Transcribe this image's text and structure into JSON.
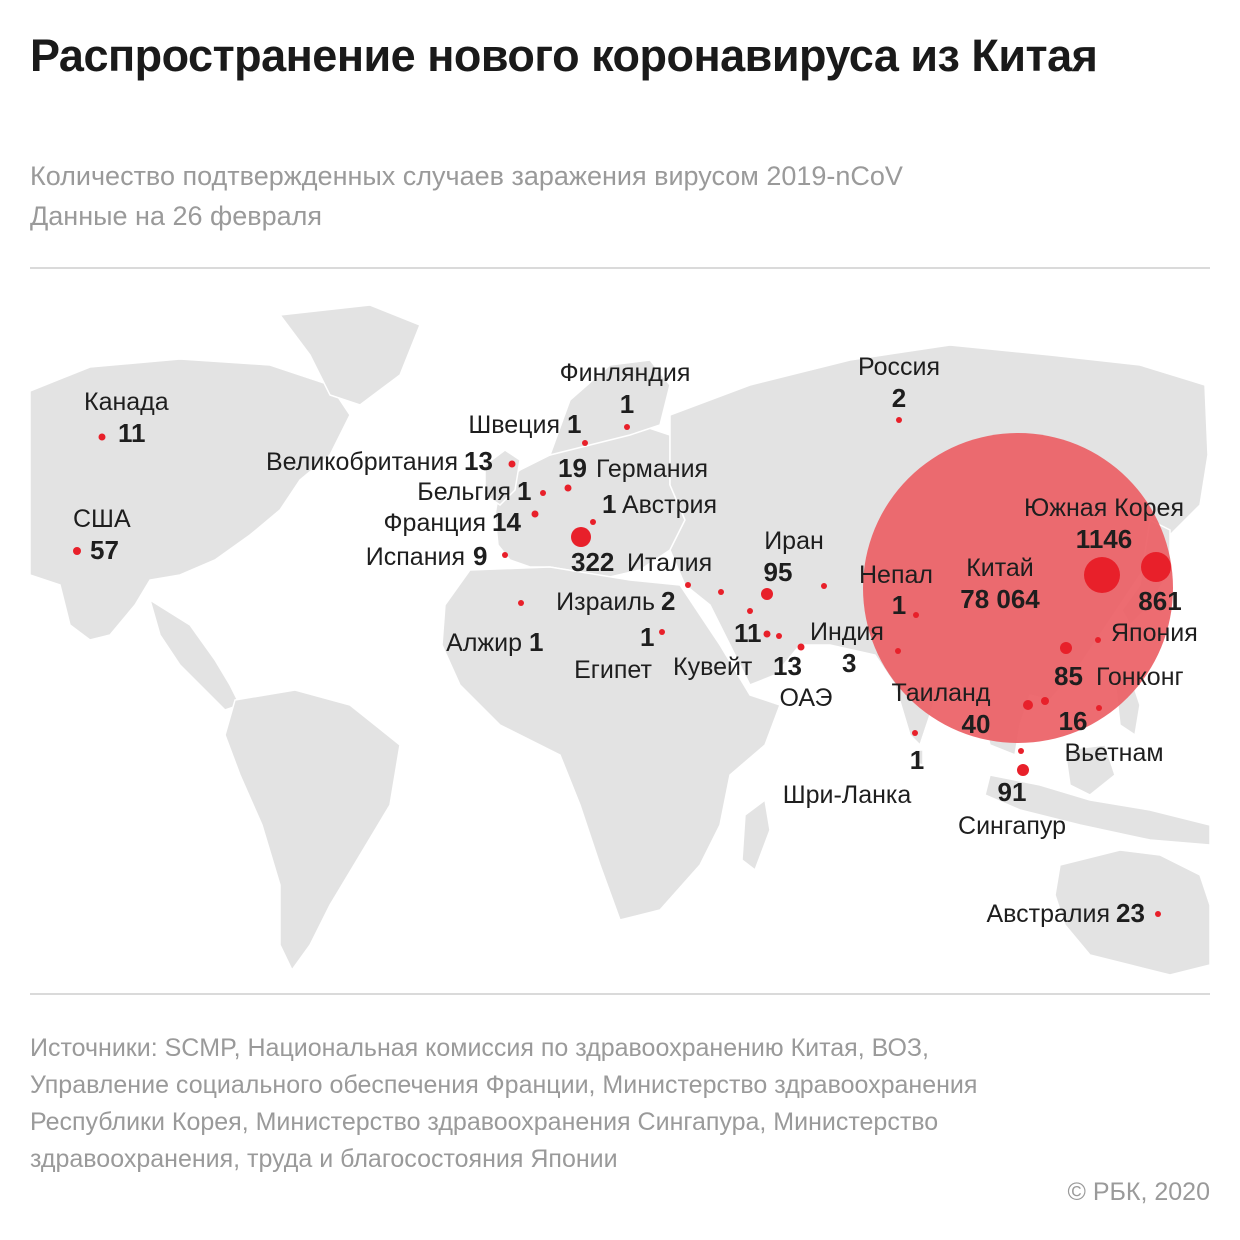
{
  "title": "Распространение нового коронавируса из Китая",
  "subtitle_lines": [
    "Количество подтвержденных случаев заражения вирусом 2019-nCoV",
    "Данные на 26 февраля"
  ],
  "sources": "Источники: SCMP, Национальная комиссия по здравоохранению Китая, ВОЗ, Управление социального обеспечения Франции, Министерство здравоохранения Республики Корея, Министерство здравоохранения Сингапура, Министерство здравоохранения, труда и благосостояния Японии",
  "copyright": "© РБК, 2020",
  "colors": {
    "marker": "#e8202a",
    "china_circle": "#eb5c62",
    "land": "#e3e3e3"
  },
  "locations": [
    {
      "name": "Канада",
      "cases": 11
    },
    {
      "name": "США",
      "cases": 57
    },
    {
      "name": "Великобритания",
      "cases": 13
    },
    {
      "name": "Бельгия",
      "cases": 1
    },
    {
      "name": "Франция",
      "cases": 14
    },
    {
      "name": "Испания",
      "cases": 9
    },
    {
      "name": "Швеция",
      "cases": 1
    },
    {
      "name": "Финляндия",
      "cases": 1
    },
    {
      "name": "Германия",
      "cases": 19
    },
    {
      "name": "Австрия",
      "cases": 1
    },
    {
      "name": "Италия",
      "cases": 322
    },
    {
      "name": "Россия",
      "cases": 2
    },
    {
      "name": "Израиль",
      "cases": 2
    },
    {
      "name": "Алжир",
      "cases": 1
    },
    {
      "name": "Египет",
      "cases": 1
    },
    {
      "name": "Иран",
      "cases": 95
    },
    {
      "name": "Кувейт",
      "cases": 11
    },
    {
      "name": "ОАЭ",
      "cases": 13
    },
    {
      "name": "Непал",
      "cases": 1
    },
    {
      "name": "Индия",
      "cases": 3
    },
    {
      "name": "Шри-Ланка",
      "cases": 1
    },
    {
      "name": "Китай",
      "cases": "78 064"
    },
    {
      "name": "Южная Корея",
      "cases": 1146
    },
    {
      "name": "Япония",
      "cases": 861
    },
    {
      "name": "Гонконг",
      "cases": 85
    },
    {
      "name": "Таиланд",
      "cases": 40
    },
    {
      "name": "Вьетнам",
      "cases": 16
    },
    {
      "name": "Сингапур",
      "cases": 91
    },
    {
      "name": "Австралия",
      "cases": 23
    }
  ]
}
